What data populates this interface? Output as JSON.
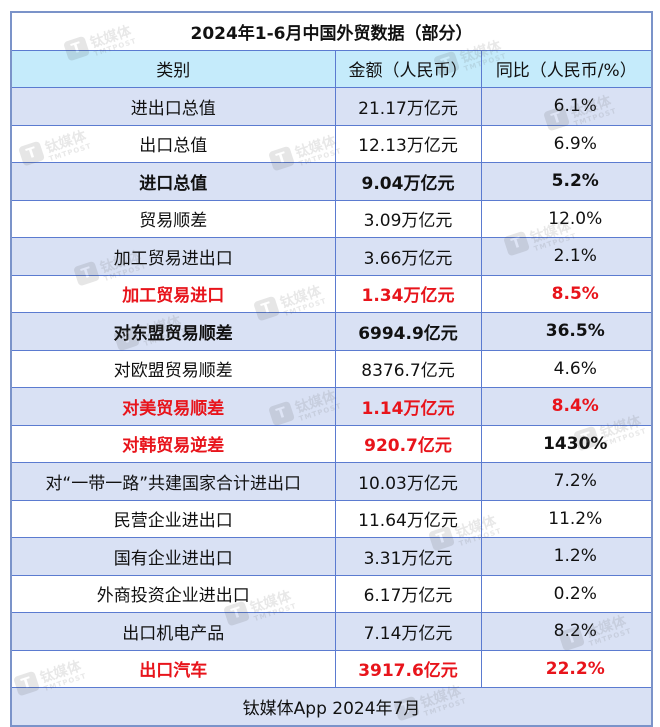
{
  "title": "2024年1-6月中国外贸数据（部分）",
  "headers": [
    "类别",
    "金额（人民币）",
    "同比（人民币/%）"
  ],
  "rows": [
    {
      "category": "进出口总值",
      "amount": "21.17万亿元",
      "yoy": "6.1%",
      "style": "normal"
    },
    {
      "category": "出口总值",
      "amount": "12.13万亿元",
      "yoy": "6.9%",
      "style": "normal"
    },
    {
      "category": "进口总值",
      "amount": "9.04万亿元",
      "yoy": "5.2%",
      "style": "bold"
    },
    {
      "category": "贸易顺差",
      "amount": "3.09万亿元",
      "yoy": "12.0%",
      "style": "normal"
    },
    {
      "category": "加工贸易进出口",
      "amount": "3.66万亿元",
      "yoy": "2.1%",
      "style": "normal"
    },
    {
      "category": "加工贸易进口",
      "amount": "1.34万亿元",
      "yoy": "8.5%",
      "style": "red"
    },
    {
      "category": "对东盟贸易顺差",
      "amount": "6994.9亿元",
      "yoy": "36.5%",
      "style": "bold"
    },
    {
      "category": "对欧盟贸易顺差",
      "amount": "8376.7亿元",
      "yoy": "4.6%",
      "style": "normal"
    },
    {
      "category": "对美贸易顺差",
      "amount": "1.14万亿元",
      "yoy": "8.4%",
      "style": "red"
    },
    {
      "category": "对韩贸易逆差",
      "amount": "920.7亿元",
      "yoy": "1430%",
      "style": "red-bold-yoy-black"
    },
    {
      "category": "对“一带一路”共建国家合计进出口",
      "amount": "10.03万亿元",
      "yoy": "7.2%",
      "style": "normal"
    },
    {
      "category": "民营企业进出口",
      "amount": "11.64万亿元",
      "yoy": "11.2%",
      "style": "normal"
    },
    {
      "category": "国有企业进出口",
      "amount": "3.31万亿元",
      "yoy": "1.2%",
      "style": "normal"
    },
    {
      "category": "外商投资企业进出口",
      "amount": "6.17万亿元",
      "yoy": "0.2%",
      "style": "normal"
    },
    {
      "category": "出口机电产品",
      "amount": "7.14万亿元",
      "yoy": "8.2%",
      "style": "normal"
    },
    {
      "category": "出口汽车",
      "amount": "3917.6亿元",
      "yoy": "22.2%",
      "style": "red"
    }
  ],
  "footer": "钛媒体App 2024年7月",
  "watermark": {
    "logo": "T",
    "text": "钛媒体",
    "sub": "TMTPOST"
  },
  "colors": {
    "title_red": "#e8141b",
    "header_bg": "#c5ebfb",
    "band_bg": "#d9e1f4",
    "border": "#5b7bd0"
  }
}
